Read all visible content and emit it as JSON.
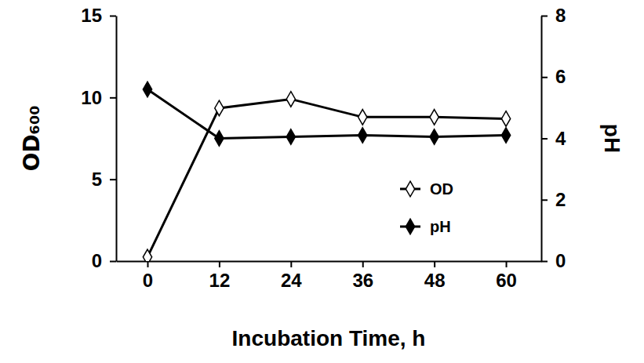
{
  "chart_data": {
    "type": "line",
    "x_label": "Incubation Time, h",
    "y_label": "OD₆₀₀",
    "y2_label": "pH",
    "x": [
      0,
      12,
      24,
      36,
      48,
      60
    ],
    "xlim": [
      -5.25,
      65.9
    ],
    "xticks": [
      0,
      12,
      24,
      36,
      48,
      60
    ],
    "ylim": [
      0,
      15
    ],
    "yticks": [
      0,
      5,
      10,
      15
    ],
    "y2lim": [
      0,
      8
    ],
    "y2ticks": [
      0,
      2,
      4,
      6,
      8
    ],
    "legend": "lower right",
    "grid": false,
    "series": [
      {
        "name": "OD",
        "color": "#000000",
        "marker": "diamond-open",
        "line_style": "solid",
        "values": [
          0.25,
          9.35,
          9.9,
          8.8,
          8.8,
          8.7
        ]
      },
      {
        "name": "pH",
        "color": "#000000",
        "marker": "diamond",
        "line_style": "solid",
        "axis": "y2",
        "values": [
          5.6,
          4.0,
          4.05,
          4.1,
          4.05,
          4.1
        ]
      }
    ]
  }
}
